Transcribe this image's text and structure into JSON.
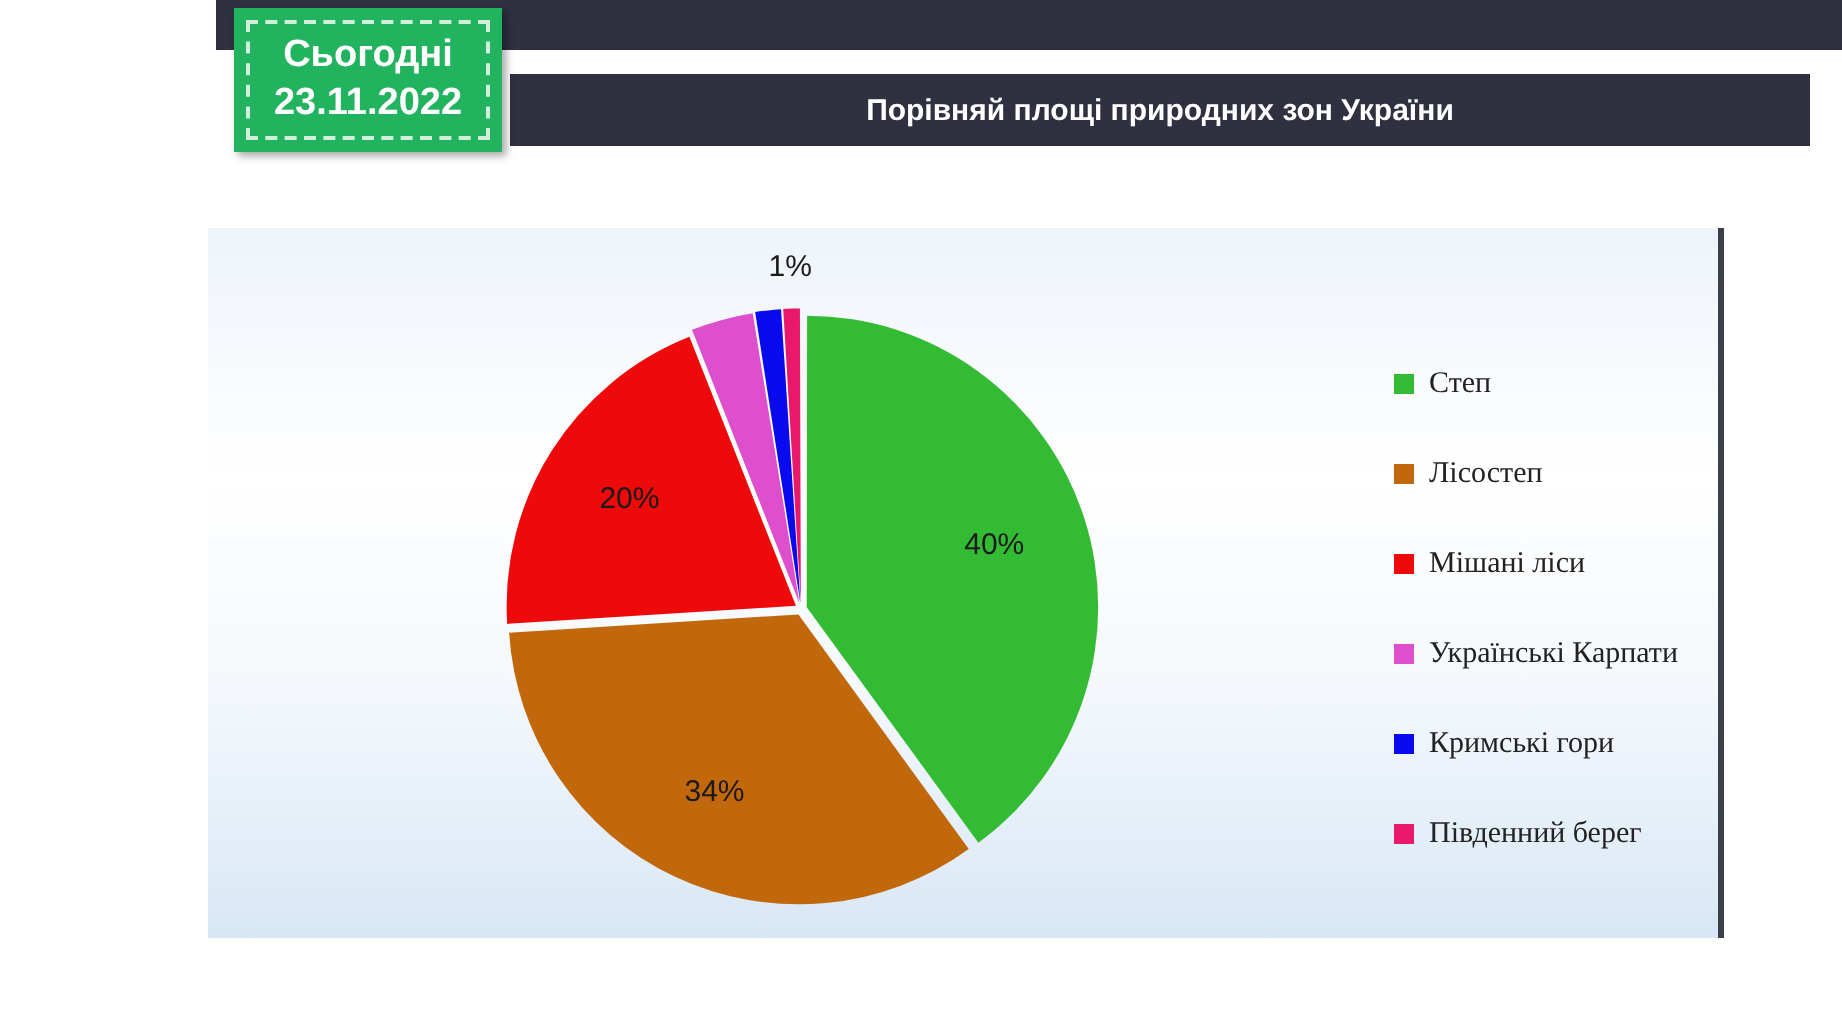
{
  "chart_data": {
    "type": "pie",
    "title": "Порівняй площі природних зон України",
    "annotations": [
      "Сьогодні",
      "23.11.2022"
    ],
    "categories": [
      "Степ",
      "Лісостеп",
      "Мішані ліси",
      "Українські Карпати",
      "Кримські гори",
      "Південний берег"
    ],
    "values": [
      40,
      34,
      20,
      3.5,
      1.5,
      1
    ],
    "colors": [
      "#33bb33",
      "#c2680c",
      "#ee0a0a",
      "#dd4fcc",
      "#0a0aee",
      "#e8186b"
    ],
    "value_labels": [
      "40%",
      "34%",
      "20%",
      null,
      null,
      "1%"
    ],
    "legend": "right"
  }
}
